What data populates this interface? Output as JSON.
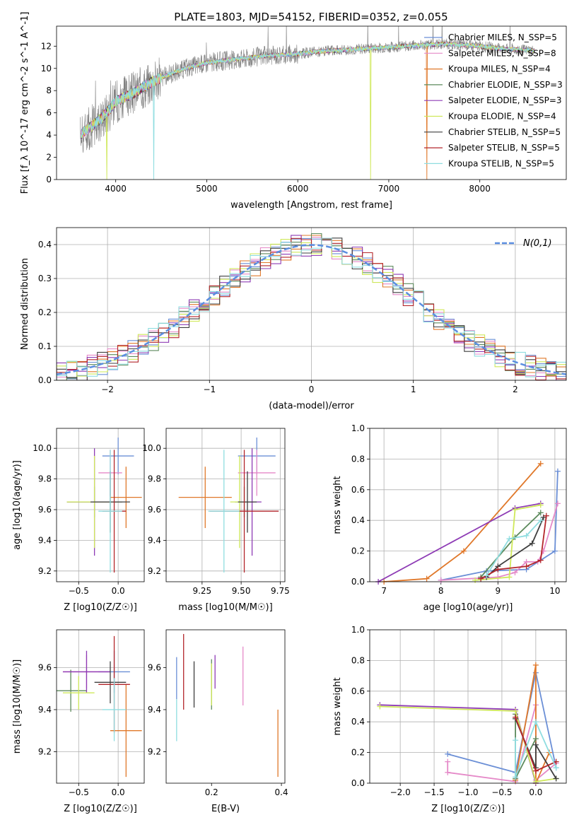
{
  "figure": {
    "title": "PLATE=1803, MJD=54152, FIBERID=0352, z=0.055"
  },
  "colors": {
    "chabrier_miles": "#6b8fd6",
    "salpeter_miles": "#e589c8",
    "kroupa_miles": "#e0782a",
    "chabrier_elodie": "#5c8a5c",
    "salpeter_elodie": "#8e3bb5",
    "kroupa_elodie": "#cfe85a",
    "chabrier_stelib": "#3f3f3f",
    "salpeter_stelib": "#b3262b",
    "kroupa_stelib": "#8fdde0",
    "data": "#808080",
    "normal": "#5b8ee0"
  },
  "chart_data": [
    {
      "id": "spectrum",
      "type": "line",
      "xlabel": "wavelength [Angstrom, rest frame]",
      "ylabel": "Flux [f_λ 10^-17 erg cm^-2 s^-1 A^-1]",
      "xlim": [
        3350,
        8950
      ],
      "ylim": [
        0,
        13.8
      ],
      "xticks": [
        4000,
        5000,
        6000,
        7000,
        8000
      ],
      "yticks": [
        0,
        2,
        4,
        6,
        8,
        10,
        12
      ],
      "grid": false,
      "legend_position": "upper-right",
      "continuum": {
        "x": [
          3600,
          3700,
          3800,
          3900,
          4000,
          4200,
          4400,
          4600,
          4800,
          5000,
          5200,
          5400,
          5600,
          5800,
          6000,
          6200,
          6400,
          6600,
          6800,
          7000,
          7200,
          7400,
          7600,
          7800,
          8000,
          8200,
          8400,
          8600
        ],
        "y": [
          4.0,
          4.6,
          5.2,
          6.0,
          7.0,
          7.8,
          8.8,
          9.5,
          10.1,
          10.5,
          10.7,
          10.9,
          11.1,
          11.2,
          11.3,
          11.5,
          11.6,
          11.7,
          11.8,
          11.9,
          12.0,
          12.1,
          12.2,
          12.1,
          12.0,
          11.8,
          11.7,
          11.6
        ]
      },
      "legend": [
        {
          "name": "Chabrier MILES, N_SSP=5",
          "color_key": "chabrier_miles"
        },
        {
          "name": "Salpeter MILES, N_SSP=8",
          "color_key": "salpeter_miles"
        },
        {
          "name": "Kroupa MILES, N_SSP=4",
          "color_key": "kroupa_miles"
        },
        {
          "name": "Chabrier ELODIE, N_SSP=3",
          "color_key": "chabrier_elodie"
        },
        {
          "name": "Salpeter ELODIE, N_SSP=3",
          "color_key": "salpeter_elodie"
        },
        {
          "name": "Kroupa ELODIE, N_SSP=4",
          "color_key": "kroupa_elodie"
        },
        {
          "name": "Chabrier STELIB, N_SSP=5",
          "color_key": "chabrier_stelib"
        },
        {
          "name": "Salpeter STELIB, N_SSP=5",
          "color_key": "salpeter_stelib"
        },
        {
          "name": "Kroupa STELIB, N_SSP=5",
          "color_key": "kroupa_stelib"
        }
      ]
    },
    {
      "id": "residuals",
      "type": "line",
      "xlabel": "(data-model)/error",
      "ylabel": "Normed distribution",
      "xlim": [
        -2.5,
        2.5
      ],
      "ylim": [
        0,
        0.45
      ],
      "xticks": [
        -2,
        -1,
        0,
        1,
        2
      ],
      "yticks": [
        0.0,
        0.1,
        0.2,
        0.3,
        0.4
      ],
      "grid": true,
      "legend": "N(0,1)",
      "legend_position": "upper-right",
      "bin_width": 0.1
    },
    {
      "id": "age_vs_Z",
      "type": "scatter",
      "xlabel": "Z [log10(Z/Z☉)]",
      "ylabel": "age [log10(age/yr)]",
      "xlim": [
        -0.78,
        0.33
      ],
      "ylim": [
        9.13,
        10.13
      ],
      "xticks": [
        -0.5,
        0.0
      ],
      "yticks": [
        9.2,
        9.4,
        9.6,
        9.8,
        10.0
      ],
      "grid": true,
      "points": [
        {
          "color_key": "chabrier_miles",
          "x": 0.0,
          "y": 9.95,
          "xerr": 0.2,
          "yerr": 0.12
        },
        {
          "color_key": "salpeter_miles",
          "x": -0.1,
          "y": 9.84,
          "xerr": 0.15,
          "yerr": 0.15
        },
        {
          "color_key": "kroupa_miles",
          "x": 0.1,
          "y": 9.68,
          "xerr": 0.2,
          "yerr": 0.2
        },
        {
          "color_key": "chabrier_elodie",
          "x": -0.3,
          "y": 9.65,
          "xerr": 0.35,
          "yerr": 0.1
        },
        {
          "color_key": "salpeter_elodie",
          "x": -0.3,
          "y": 9.65,
          "xerr": 0.35,
          "yerr": 0.35
        },
        {
          "color_key": "kroupa_elodie",
          "x": -0.3,
          "y": 9.65,
          "xerr": 0.35,
          "yerr": 0.3
        },
        {
          "color_key": "chabrier_stelib",
          "x": -0.1,
          "y": 9.65,
          "xerr": 0.25,
          "yerr": 0.2
        },
        {
          "color_key": "salpeter_stelib",
          "x": -0.05,
          "y": 9.59,
          "xerr": 0.15,
          "yerr": 0.4
        },
        {
          "color_key": "kroupa_stelib",
          "x": -0.1,
          "y": 9.59,
          "xerr": 0.15,
          "yerr": 0.4
        }
      ]
    },
    {
      "id": "age_vs_mass",
      "type": "scatter",
      "xlabel": "mass [log10(M/M☉)]",
      "ylabel": "",
      "xlim": [
        9.02,
        9.78
      ],
      "ylim": [
        9.13,
        10.13
      ],
      "xticks": [
        9.25,
        9.5,
        9.75
      ],
      "yticks": [
        9.2,
        9.4,
        9.6,
        9.8,
        10.0
      ],
      "grid": true,
      "points": [
        {
          "color_key": "chabrier_miles",
          "x": 9.6,
          "y": 9.95,
          "xerr": 0.12,
          "yerr": 0.12
        },
        {
          "color_key": "salpeter_miles",
          "x": 9.6,
          "y": 9.84,
          "xerr": 0.12,
          "yerr": 0.15
        },
        {
          "color_key": "kroupa_miles",
          "x": 9.27,
          "y": 9.68,
          "xerr": 0.17,
          "yerr": 0.2
        },
        {
          "color_key": "chabrier_elodie",
          "x": 9.52,
          "y": 9.65,
          "xerr": 0.06,
          "yerr": 0.1
        },
        {
          "color_key": "salpeter_elodie",
          "x": 9.57,
          "y": 9.65,
          "xerr": 0.06,
          "yerr": 0.35
        },
        {
          "color_key": "kroupa_elodie",
          "x": 9.49,
          "y": 9.65,
          "xerr": 0.06,
          "yerr": 0.3
        },
        {
          "color_key": "chabrier_stelib",
          "x": 9.54,
          "y": 9.65,
          "xerr": 0.06,
          "yerr": 0.2
        },
        {
          "color_key": "salpeter_stelib",
          "x": 9.52,
          "y": 9.59,
          "xerr": 0.22,
          "yerr": 0.4
        },
        {
          "color_key": "kroupa_stelib",
          "x": 9.39,
          "y": 9.59,
          "xerr": 0.1,
          "yerr": 0.4
        }
      ]
    },
    {
      "id": "weight_vs_age",
      "type": "line",
      "xlabel": "age [log10(age/yr)]",
      "ylabel": "mass weight",
      "xlim": [
        6.75,
        10.2
      ],
      "ylim": [
        0,
        1.0
      ],
      "xticks": [
        7,
        8,
        9,
        10
      ],
      "yticks": [
        0.0,
        0.2,
        0.4,
        0.6,
        0.8,
        1.0
      ],
      "grid": true,
      "series": [
        {
          "color_key": "chabrier_miles",
          "x": [
            8.0,
            8.8,
            9.5,
            10.0,
            10.05
          ],
          "y": [
            0.01,
            0.07,
            0.08,
            0.2,
            0.72
          ]
        },
        {
          "color_key": "salpeter_miles",
          "x": [
            8.0,
            9.0,
            9.3,
            9.5,
            9.7,
            9.8,
            10.05
          ],
          "y": [
            0.01,
            0.03,
            0.06,
            0.13,
            0.13,
            0.2,
            0.51
          ]
        },
        {
          "color_key": "kroupa_miles",
          "x": [
            7.0,
            7.75,
            8.4,
            9.75
          ],
          "y": [
            0.0,
            0.02,
            0.2,
            0.77
          ]
        },
        {
          "color_key": "chabrier_elodie",
          "x": [
            8.7,
            9.3,
            9.75
          ],
          "y": [
            0.03,
            0.29,
            0.45
          ]
        },
        {
          "color_key": "salpeter_elodie",
          "x": [
            6.9,
            9.3,
            9.75
          ],
          "y": [
            0.0,
            0.48,
            0.51
          ]
        },
        {
          "color_key": "kroupa_elodie",
          "x": [
            8.6,
            9.2,
            9.3,
            9.75
          ],
          "y": [
            0.01,
            0.03,
            0.47,
            0.5
          ]
        },
        {
          "color_key": "chabrier_stelib",
          "x": [
            8.8,
            9.0,
            9.6,
            9.8
          ],
          "y": [
            0.03,
            0.1,
            0.25,
            0.42
          ]
        },
        {
          "color_key": "salpeter_stelib",
          "x": [
            8.7,
            9.0,
            9.5,
            9.75,
            9.85
          ],
          "y": [
            0.02,
            0.08,
            0.1,
            0.14,
            0.43
          ]
        },
        {
          "color_key": "kroupa_stelib",
          "x": [
            8.8,
            9.2,
            9.5,
            9.75
          ],
          "y": [
            0.04,
            0.28,
            0.3,
            0.4
          ]
        }
      ]
    },
    {
      "id": "mass_vs_Z",
      "type": "scatter",
      "xlabel": "Z [log10(Z/Z☉)]",
      "ylabel": "mass [log10(M/M☉)]",
      "xlim": [
        -0.78,
        0.33
      ],
      "ylim": [
        9.05,
        9.78
      ],
      "xticks": [
        -0.5,
        0.0
      ],
      "yticks": [
        9.2,
        9.4,
        9.6
      ],
      "grid": true,
      "points": [
        {
          "color_key": "chabrier_miles",
          "x": -0.05,
          "y": 9.58,
          "xerr": 0.2,
          "yerr": 0.1
        },
        {
          "color_key": "salpeter_miles",
          "x": -0.4,
          "y": 9.58,
          "xerr": 0.3,
          "yerr": 0.08
        },
        {
          "color_key": "kroupa_miles",
          "x": 0.1,
          "y": 9.3,
          "xerr": 0.2,
          "yerr": 0.22
        },
        {
          "color_key": "chabrier_elodie",
          "x": -0.6,
          "y": 9.49,
          "xerr": 0.2,
          "yerr": 0.1
        },
        {
          "color_key": "salpeter_elodie",
          "x": -0.4,
          "y": 9.58,
          "xerr": 0.3,
          "yerr": 0.1
        },
        {
          "color_key": "kroupa_elodie",
          "x": -0.5,
          "y": 9.48,
          "xerr": 0.2,
          "yerr": 0.08
        },
        {
          "color_key": "chabrier_stelib",
          "x": -0.1,
          "y": 9.53,
          "xerr": 0.2,
          "yerr": 0.1
        },
        {
          "color_key": "salpeter_stelib",
          "x": -0.05,
          "y": 9.52,
          "xerr": 0.2,
          "yerr": 0.23
        },
        {
          "color_key": "kroupa_stelib",
          "x": -0.05,
          "y": 9.4,
          "xerr": 0.15,
          "yerr": 0.15
        }
      ]
    },
    {
      "id": "mass_vs_ebv",
      "type": "scatter",
      "xlabel": "E(B-V)",
      "ylabel": "",
      "xlim": [
        0.07,
        0.41
      ],
      "ylim": [
        9.05,
        9.78
      ],
      "xticks": [
        0.2,
        0.4
      ],
      "yticks": [
        9.2,
        9.4,
        9.6
      ],
      "grid": false,
      "points": [
        {
          "color_key": "chabrier_miles",
          "x": 0.1,
          "y": 9.55,
          "xerr": 0.0,
          "yerr": 0.1
        },
        {
          "color_key": "salpeter_miles",
          "x": 0.29,
          "y": 9.56,
          "xerr": 0.0,
          "yerr": 0.14
        },
        {
          "color_key": "kroupa_miles",
          "x": 0.39,
          "y": 9.24,
          "xerr": 0.0,
          "yerr": 0.16
        },
        {
          "color_key": "chabrier_elodie",
          "x": 0.2,
          "y": 9.52,
          "xerr": 0.0,
          "yerr": 0.12
        },
        {
          "color_key": "salpeter_elodie",
          "x": 0.21,
          "y": 9.58,
          "xerr": 0.0,
          "yerr": 0.08
        },
        {
          "color_key": "kroupa_elodie",
          "x": 0.2,
          "y": 9.52,
          "xerr": 0.0,
          "yerr": 0.1
        },
        {
          "color_key": "chabrier_stelib",
          "x": 0.15,
          "y": 9.52,
          "xerr": 0.0,
          "yerr": 0.11
        },
        {
          "color_key": "salpeter_stelib",
          "x": 0.12,
          "y": 9.58,
          "xerr": 0.0,
          "yerr": 0.18
        },
        {
          "color_key": "kroupa_stelib",
          "x": 0.1,
          "y": 9.35,
          "xerr": 0.0,
          "yerr": 0.1
        }
      ]
    },
    {
      "id": "weight_vs_Z",
      "type": "line",
      "xlabel": "Z [log10(Z/Z☉)]",
      "ylabel": "mass weight",
      "xlim": [
        -2.45,
        0.45
      ],
      "ylim": [
        0,
        1.0
      ],
      "xticks": [
        -2.0,
        -1.5,
        -1.0,
        -0.5,
        0.0
      ],
      "yticks": [
        0.0,
        0.2,
        0.4,
        0.6,
        0.8,
        1.0
      ],
      "grid": true,
      "series": [
        {
          "color_key": "chabrier_miles",
          "x": [
            -1.3,
            -0.3,
            0.0,
            0.3
          ],
          "y": [
            0.19,
            0.07,
            0.72,
            0.1
          ]
        },
        {
          "color_key": "salpeter_miles",
          "x": [
            -1.3,
            -1.3,
            -0.3,
            0.0,
            0.0,
            0.3
          ],
          "y": [
            0.14,
            0.07,
            0.01,
            0.51,
            0.02,
            0.13
          ]
        },
        {
          "color_key": "kroupa_miles",
          "x": [
            -0.3,
            0.0,
            0.0,
            0.2
          ],
          "y": [
            0.02,
            0.77,
            0.0,
            0.2
          ]
        },
        {
          "color_key": "chabrier_elodie",
          "x": [
            -0.3,
            -0.3,
            0.0
          ],
          "y": [
            0.45,
            0.03,
            0.29
          ]
        },
        {
          "color_key": "salpeter_elodie",
          "x": [
            -2.3,
            -0.3,
            0.0
          ],
          "y": [
            0.51,
            0.48,
            0.0
          ]
        },
        {
          "color_key": "kroupa_elodie",
          "x": [
            -2.3,
            -0.3,
            0.0,
            0.3
          ],
          "y": [
            0.5,
            0.47,
            0.01,
            0.03
          ]
        },
        {
          "color_key": "chabrier_stelib",
          "x": [
            -0.3,
            0.0,
            0.0,
            0.3
          ],
          "y": [
            0.42,
            0.1,
            0.25,
            0.03
          ]
        },
        {
          "color_key": "salpeter_stelib",
          "x": [
            -0.3,
            0.0,
            0.3
          ],
          "y": [
            0.43,
            0.08,
            0.14
          ]
        },
        {
          "color_key": "kroupa_stelib",
          "x": [
            -0.3,
            -0.3,
            0.0,
            0.3
          ],
          "y": [
            0.28,
            0.04,
            0.4,
            0.1
          ]
        }
      ]
    }
  ]
}
